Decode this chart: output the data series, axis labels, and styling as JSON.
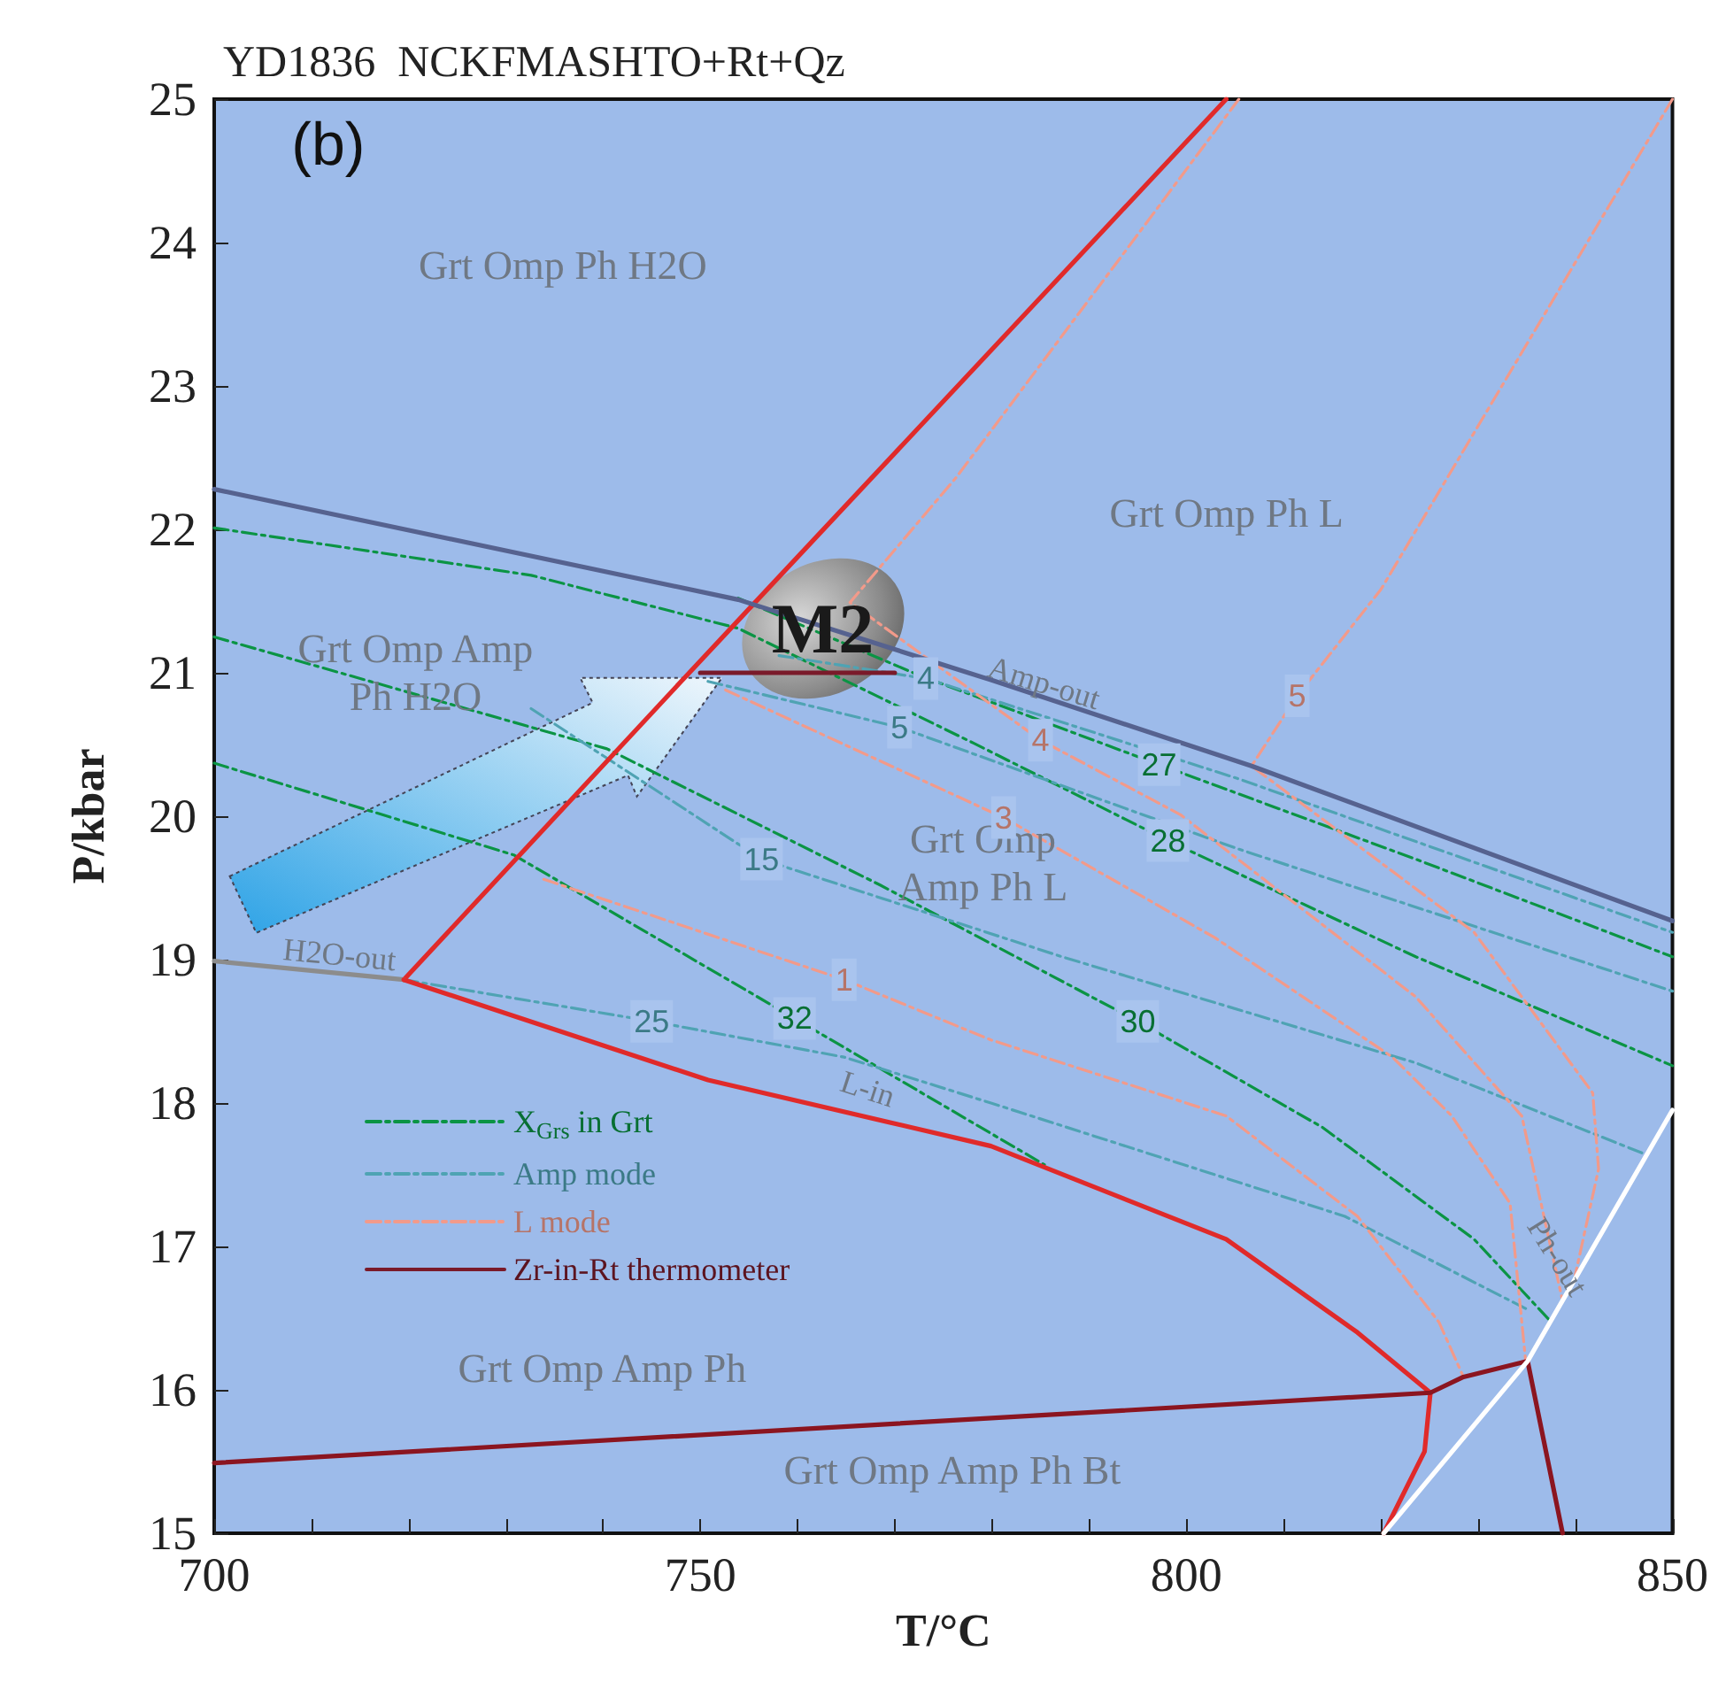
{
  "chart_data": {
    "type": "line",
    "title": "YD1836  NCKFMASHTO+Rt+Qz",
    "xlabel": "T/°C",
    "ylabel": "P/kbar",
    "xlim": [
      700,
      850
    ],
    "ylim": [
      15,
      25
    ],
    "xticks": [
      700,
      {
        "value": 710,
        "label": null
      },
      {
        "value": 720,
        "label": null
      },
      {
        "value": 730,
        "label": null
      },
      {
        "value": 740,
        "label": null
      },
      750,
      {
        "value": 760,
        "label": null
      },
      {
        "value": 770,
        "label": null
      },
      {
        "value": 780,
        "label": null
      },
      {
        "value": 790,
        "label": null
      },
      800,
      {
        "value": 810,
        "label": null
      },
      {
        "value": 820,
        "label": null
      },
      {
        "value": 830,
        "label": null
      },
      {
        "value": 840,
        "label": null
      },
      850
    ],
    "yticks": [
      15,
      16,
      17,
      18,
      19,
      20,
      21,
      22,
      23,
      24,
      25
    ],
    "legend": "bottom left",
    "marker": "none",
    "line_style": "solid",
    "series": [
      {
        "name": "X$_{Grs}$ in Grt",
        "color": "#0b9444",
        "line_style": "dashed",
        "x": [
          753.9,
          772.6,
          797.2,
          823.6,
          850
        ],
        "values": [
          21.52,
          20.98,
          20.36,
          19.7,
          19.02
        ]
      },
      {
        "color": "#0b9444",
        "line_style": "dashed",
        "x": [
          700,
          732.6,
          753.9,
          778.1,
          798.1,
          823.6,
          850
        ],
        "values": [
          22.01,
          21.68,
          21.31,
          20.51,
          19.83,
          19.02,
          18.26
        ]
      },
      {
        "color": "#0b9444",
        "line_style": "dashed",
        "x": [
          700,
          740.4,
          768.5,
          795.0,
          814.0,
          829.6,
          837.3
        ],
        "values": [
          21.25,
          20.47,
          19.52,
          18.57,
          17.83,
          17.05,
          16.49
        ]
      },
      {
        "color": "#0b9444",
        "line_style": "dashed",
        "x": [
          700,
          730.8,
          759.7,
          785.4
        ],
        "values": [
          20.37,
          19.73,
          18.59,
          17.57
        ]
      },
      {
        "name": "Amp mode",
        "color": "#4fa3b3",
        "line_style": "dashed",
        "x": [
          758.1,
          773.2,
          805.4,
          850
        ],
        "values": [
          21.12,
          20.96,
          20.26,
          19.19
        ]
      },
      {
        "color": "#4fa3b3",
        "line_style": "dashed",
        "x": [
          750.8,
          770.5,
          805.4,
          850
        ],
        "values": [
          20.94,
          20.62,
          19.77,
          18.78
        ]
      },
      {
        "color": "#4fa3b3",
        "line_style": "dashed",
        "x": [
          732.6,
          756.3,
          787.2,
          823.6,
          847.3
        ],
        "values": [
          20.75,
          19.7,
          19.02,
          18.28,
          17.64
        ]
      },
      {
        "color": "#4fa3b3",
        "line_style": "dashed",
        "x": [
          719.5,
          745.0,
          764.8,
          779.9,
          816.3,
          835.1
        ],
        "values": [
          18.86,
          18.57,
          18.32,
          18.0,
          17.21,
          16.56
        ]
      },
      {
        "name": "L mode",
        "color": "#f29a8a",
        "line_style": "dashed",
        "x": [
          733.9,
          764.8,
          779.9,
          804.1,
          817.6,
          826.0,
          828.5
        ],
        "values": [
          19.56,
          18.86,
          18.44,
          17.91,
          17.21,
          16.47,
          16.09
        ]
      },
      {
        "color": "#f29a8a",
        "line_style": "dashed",
        "x": [
          752.6,
          781.2,
          803.0,
          821.2,
          827.3,
          833.3,
          834.9
        ],
        "values": [
          20.88,
          19.99,
          19.15,
          18.32,
          17.91,
          17.3,
          16.2
        ]
      },
      {
        "color": "#f29a8a",
        "line_style": "dashed",
        "x": [
          805.4,
          776.3,
          765.4,
          785.0,
          799.4,
          823.6,
          834.5,
          838.7
        ],
        "values": [
          25.0,
          22.36,
          21.49,
          20.53,
          20.01,
          18.74,
          17.91,
          16.62
        ]
      },
      {
        "color": "#f29a8a",
        "line_style": "dashed",
        "x": [
          850,
          820.0,
          811.4,
          806.7,
          829.6,
          841.8,
          842.4,
          840.0
        ],
        "values": [
          25.0,
          21.58,
          20.84,
          20.35,
          19.19,
          18.07,
          17.54,
          16.8
        ]
      },
      {
        "name": "Zr-in-Rt thermometer",
        "color": "#7a1a2a",
        "x": [
          750,
          770
        ],
        "values": [
          21.0,
          21.0
        ]
      },
      {
        "color": "#e02a2a",
        "x": [
          719.5,
          747.9,
          755.9,
          804.1
        ],
        "values": [
          18.86,
          20.93,
          21.51,
          25.0
        ]
      },
      {
        "color": "#56628f",
        "x": [
          700,
          753.9,
          779.9,
          806.7,
          850
        ],
        "values": [
          22.28,
          21.51,
          20.95,
          20.35,
          19.27
        ]
      },
      {
        "color": "#8c8c8c",
        "x": [
          700,
          719.5
        ],
        "values": [
          18.99,
          18.86
        ]
      },
      {
        "color": "#e02a2a",
        "x": [
          719.5,
          750.8,
          779.9,
          804.1,
          817.6,
          825.1,
          824.5,
          820.3
        ],
        "values": [
          18.86,
          18.16,
          17.7,
          17.05,
          16.4,
          15.98,
          15.57,
          15.0
        ]
      },
      {
        "color": "#8b1520",
        "x": [
          700,
          825.1,
          828.5,
          835.1,
          838.7
        ],
        "values": [
          15.49,
          15.98,
          16.09,
          16.2,
          15.0
        ]
      },
      {
        "color": "#ffffff",
        "x": [
          820.3,
          835.1,
          850
        ],
        "values": [
          15.0,
          16.2,
          17.95
        ]
      }
    ],
    "annotations": [
      {
        "text": "M2",
        "x": 762.6,
        "y": 21.31
      },
      "(b)",
      "Grt Omp Ph H2O",
      "Grt Omp Ph L",
      "Grt Omp Amp\nPh H2O",
      "Grt Omp\nAmp Ph L",
      "Grt Omp Amp Ph",
      "Grt Omp Amp Ph Bt",
      "Amp-out",
      {
        "text": "H2O-out",
        "x": 712.7,
        "y": 18.9
      },
      "L-in",
      "Ph-out",
      {
        "text": "27",
        "x": 797.2,
        "y": 20.36
      },
      {
        "text": "28",
        "x": 798.1,
        "y": 19.83
      },
      {
        "text": "30",
        "x": 795.0,
        "y": 18.57
      },
      {
        "text": "32",
        "x": 759.7,
        "y": 18.59
      },
      {
        "text": "4",
        "x": 773.2,
        "y": 20.96
      },
      {
        "text": "5",
        "x": 770.5,
        "y": 20.62
      },
      {
        "text": "15",
        "x": 756.3,
        "y": 19.7
      },
      {
        "text": "25",
        "x": 745.0,
        "y": 18.57
      },
      {
        "text": "1",
        "x": 764.8,
        "y": 18.86
      },
      {
        "text": "3",
        "x": 781.2,
        "y": 19.99
      },
      {
        "text": "4",
        "x": 785.0,
        "y": 20.53
      },
      {
        "text": "5",
        "x": 811.4,
        "y": 20.84
      }
    ]
  }
}
